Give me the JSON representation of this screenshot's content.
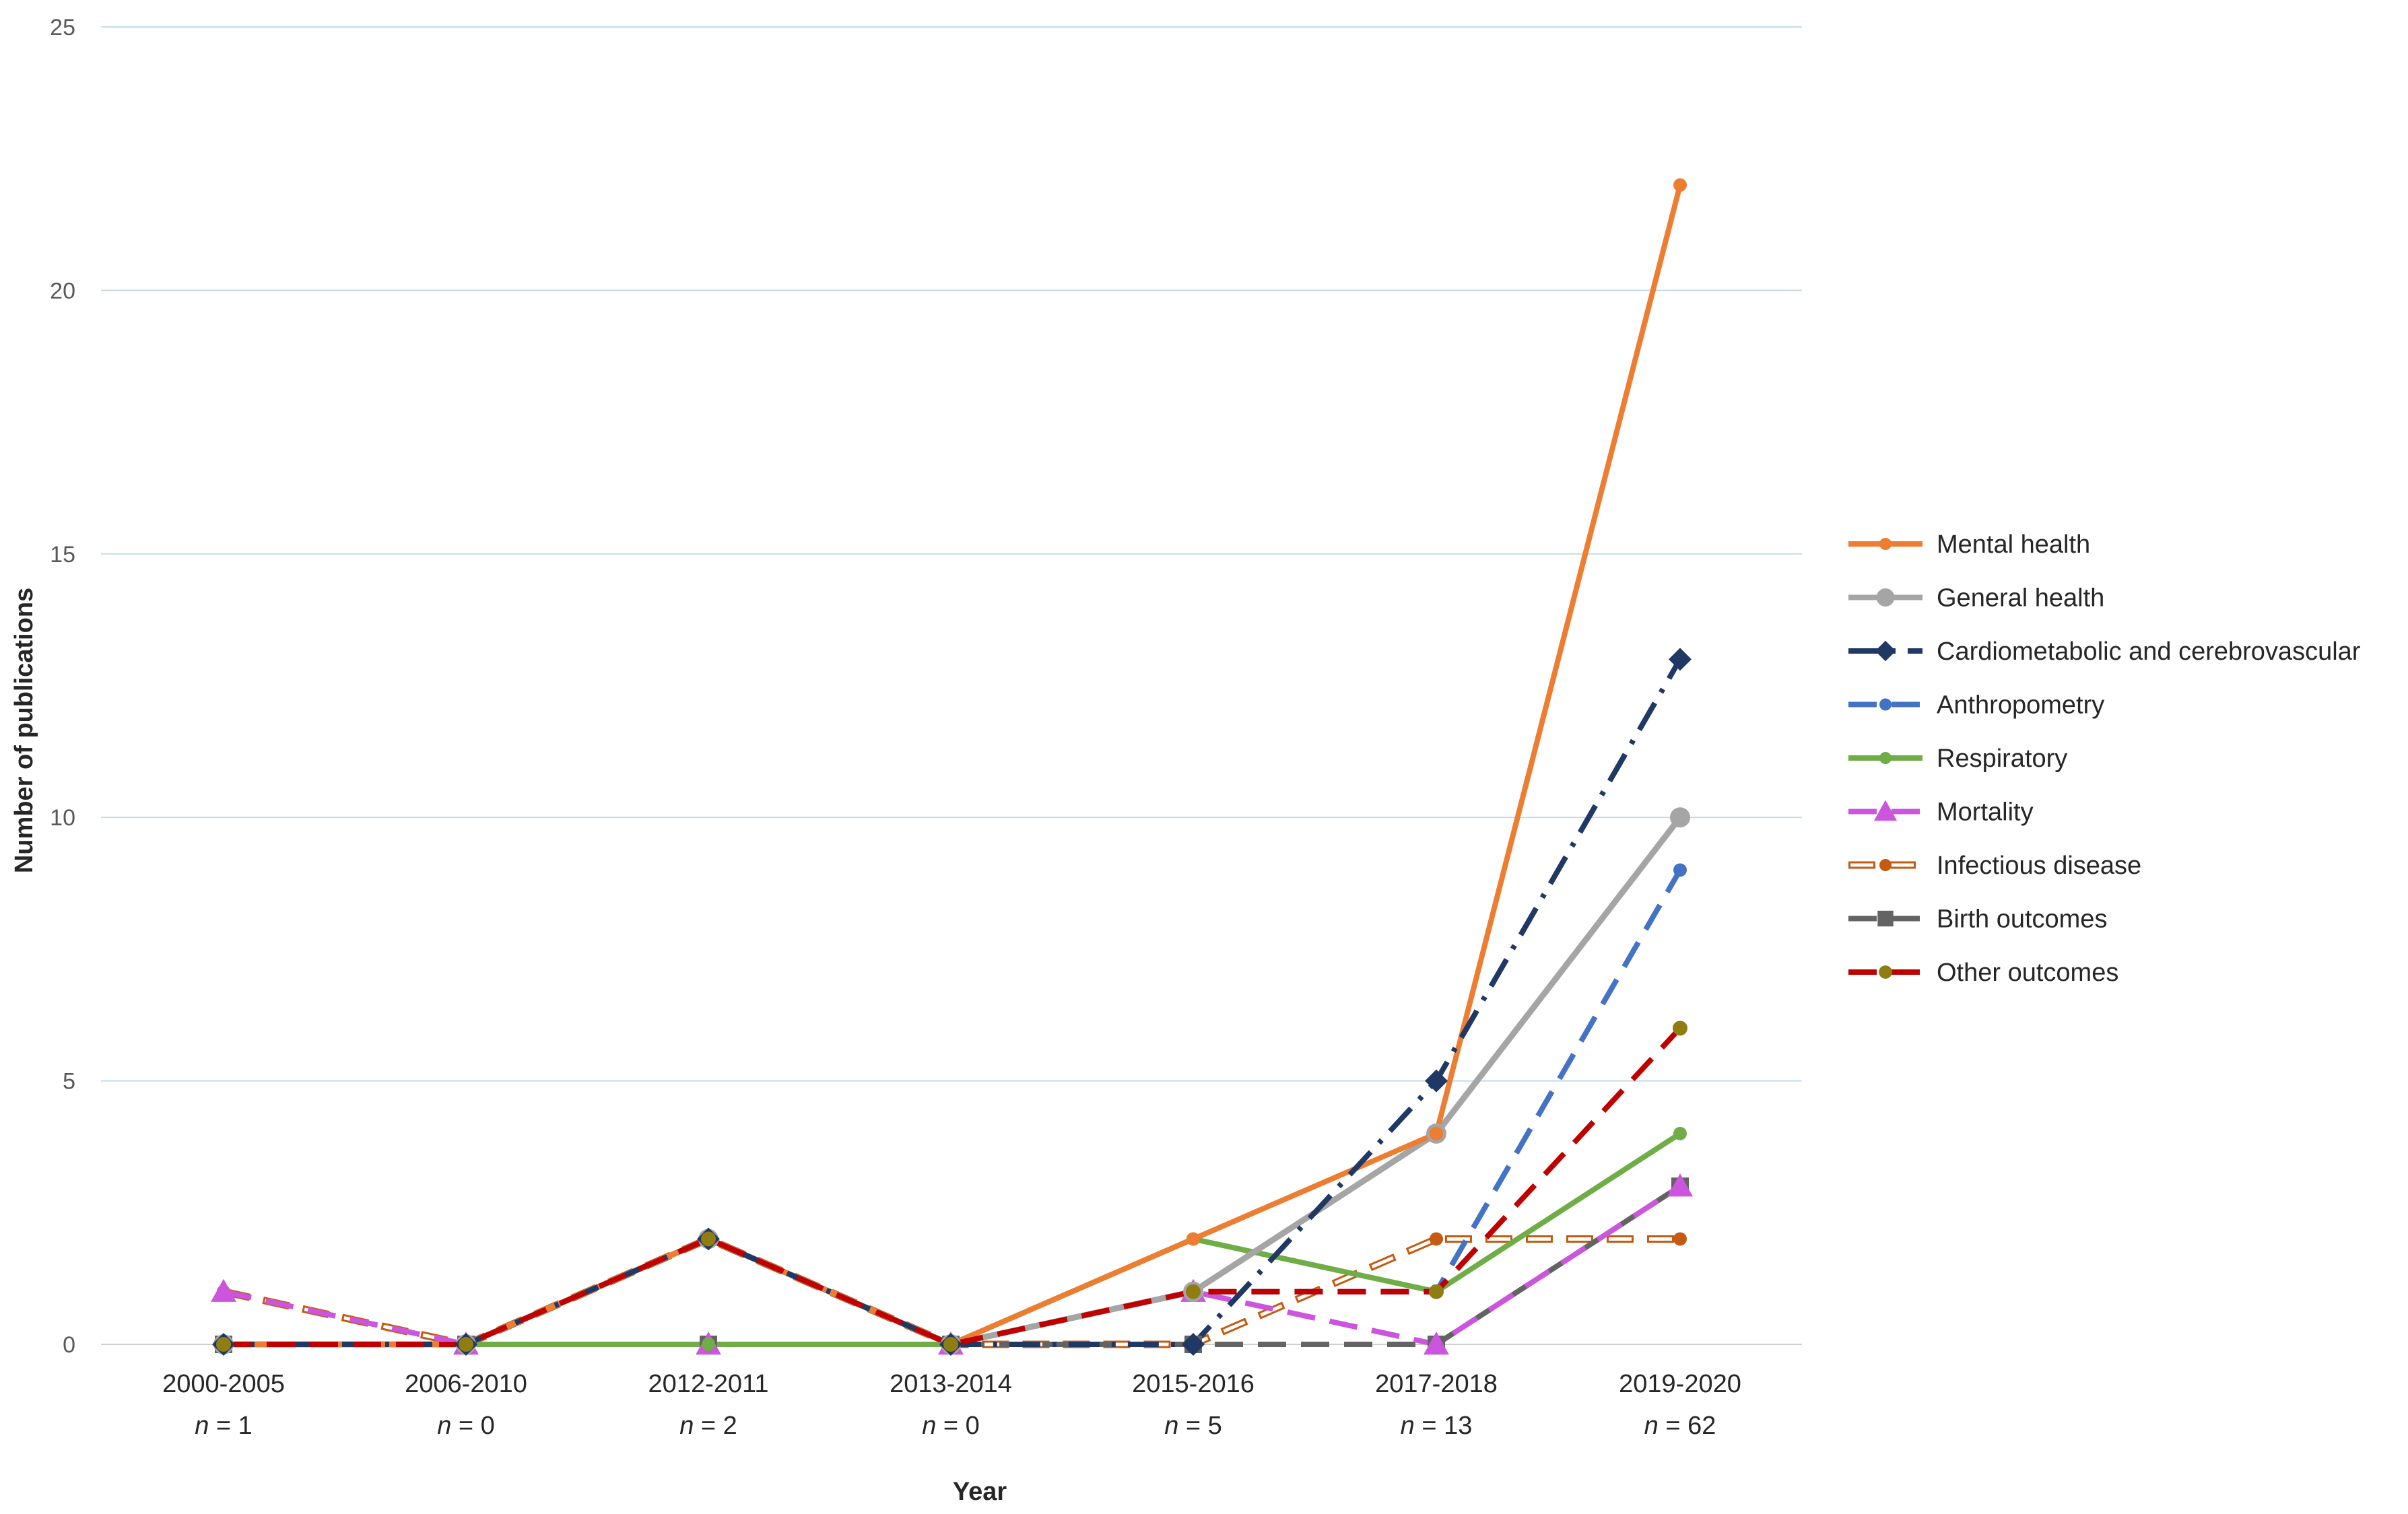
{
  "chart_data": {
    "type": "line",
    "xlabel": "Year",
    "ylabel": "Number of publications",
    "ylim": [
      0,
      25
    ],
    "yticks": [
      0,
      5,
      10,
      15,
      20,
      25
    ],
    "grid": "horizontal",
    "legend_position": "right",
    "categories": [
      "2000-2005",
      "2006-2010",
      "2012-2011",
      "2013-2014",
      "2015-2016",
      "2017-2018",
      "2019-2020"
    ],
    "n_labels": [
      {
        "prefix": "n",
        "text": " = 1"
      },
      {
        "prefix": "n",
        "text": " = 0"
      },
      {
        "prefix": "n",
        "text": " = 2"
      },
      {
        "prefix": "n",
        "text": " = 0"
      },
      {
        "prefix": "n",
        "text": " = 5"
      },
      {
        "prefix": "n",
        "text": " = 13"
      },
      {
        "prefix": "n",
        "text": " = 62"
      }
    ],
    "series": [
      {
        "name": "Mental health",
        "values": [
          0,
          0,
          2,
          0,
          2,
          4,
          22
        ],
        "color": "#ED7D31",
        "dash": "solid",
        "marker": "circle"
      },
      {
        "name": "General health",
        "values": [
          0,
          0,
          2,
          0,
          1,
          4,
          10
        ],
        "color": "#A5A5A5",
        "dash": "solid",
        "marker": "circle-large"
      },
      {
        "name": "Cardiometabolic and cerebrovascular",
        "values": [
          0,
          0,
          2,
          0,
          0,
          5,
          13
        ],
        "color": "#1F3864",
        "dash": "dash-dot",
        "marker": "diamond"
      },
      {
        "name": "Anthropometry",
        "values": [
          0,
          0,
          2,
          0,
          1,
          1,
          9
        ],
        "color": "#4472C4",
        "dash": "dash",
        "marker": "circle"
      },
      {
        "name": "Respiratory",
        "values": [
          0,
          0,
          0,
          0,
          2,
          1,
          4
        ],
        "color": "#70AD47",
        "dash": "solid",
        "marker": "circle"
      },
      {
        "name": "Mortality",
        "values": [
          1,
          0,
          0,
          0,
          1,
          0,
          3
        ],
        "color": "#CC55DD",
        "dash": "dash",
        "marker": "triangle"
      },
      {
        "name": "Infectious disease",
        "values": [
          1,
          0,
          2,
          0,
          0,
          2,
          2
        ],
        "color": "#C55A11",
        "dash": "hollow-dash",
        "marker": "circle"
      },
      {
        "name": "Birth outcomes",
        "values": [
          0,
          0,
          0,
          0,
          0,
          0,
          3
        ],
        "color": "#636363",
        "dash": "dash",
        "marker": "square"
      },
      {
        "name": "Other outcomes",
        "values": [
          0,
          0,
          2,
          0,
          1,
          1,
          6
        ],
        "color": "#C00000",
        "dash": "dash",
        "marker": "circle-olive"
      }
    ]
  }
}
